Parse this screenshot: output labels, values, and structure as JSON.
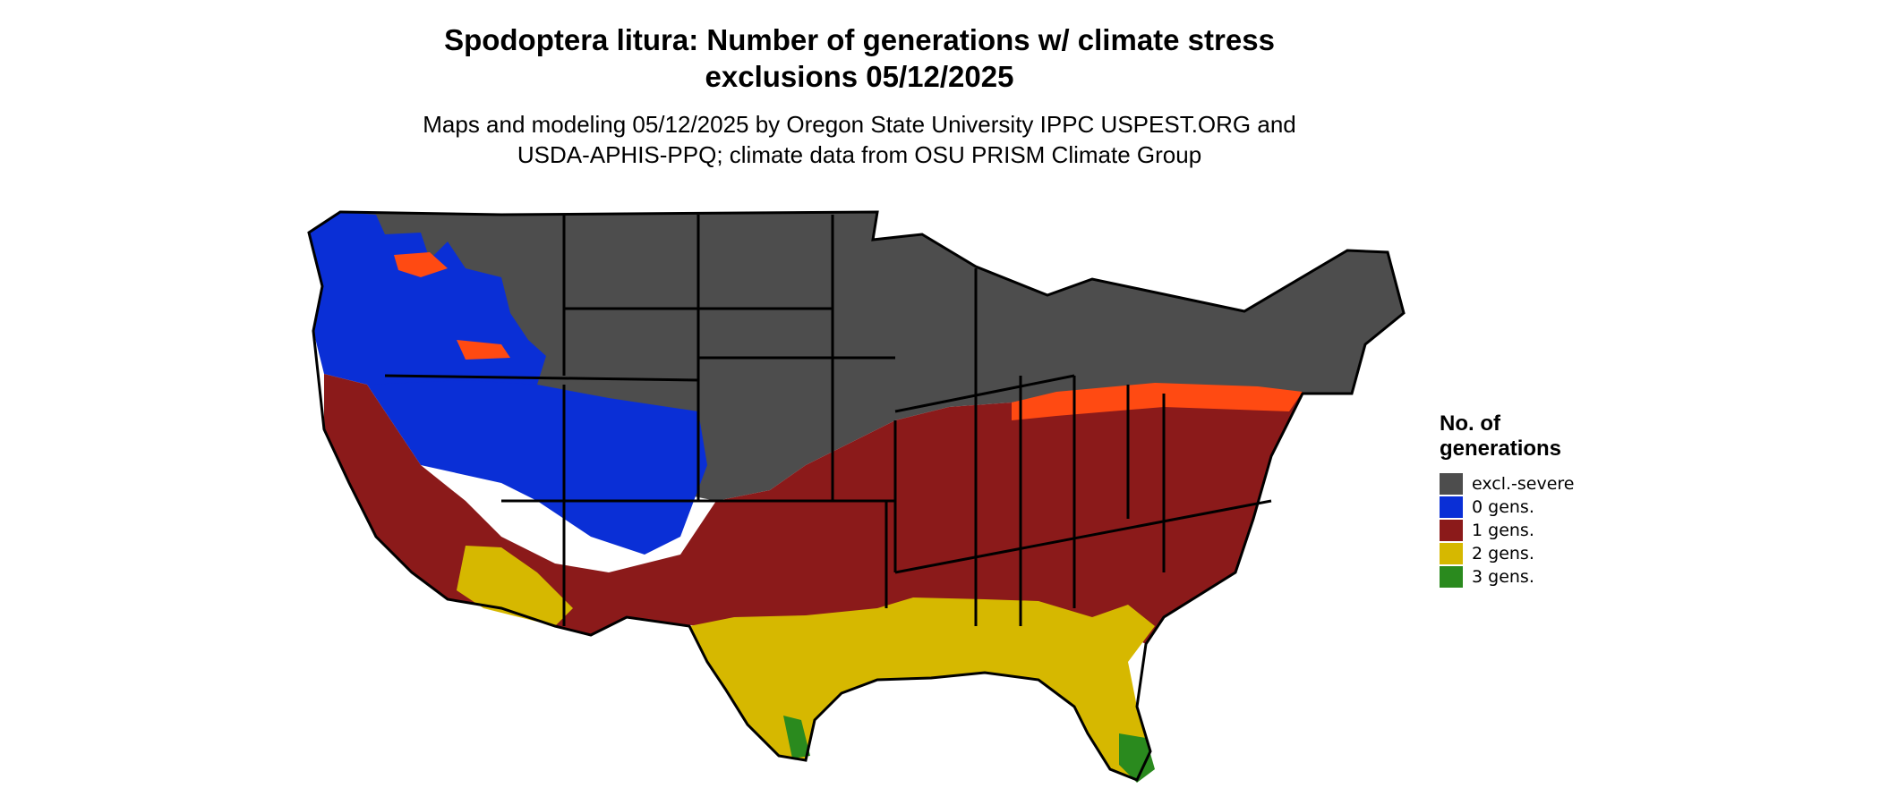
{
  "title_line1": "Spodoptera litura: Number of generations w/ climate stress",
  "title_line2": "exclusions 05/12/2025",
  "subtitle_line1": "Maps and modeling 05/12/2025 by Oregon State University IPPC USPEST.ORG and",
  "subtitle_line2": "USDA-APHIS-PPQ; climate data from OSU PRISM Climate Group",
  "legend": {
    "title_line1": "No. of",
    "title_line2": "generations",
    "items": [
      {
        "label": "excl.-severe",
        "color": "#4d4d4d"
      },
      {
        "label": "0 gens.",
        "color": "#0a2fd6"
      },
      {
        "label": "1 gens.",
        "color": "#8b1a1a"
      },
      {
        "label": "2 gens.",
        "color": "#d6b800"
      },
      {
        "label": "3 gens.",
        "color": "#2a8a1e"
      }
    ]
  },
  "map_colors": {
    "excl": "#4d4d4d",
    "zero": "#0a2fd6",
    "one": "#8b1a1a",
    "one_light": "#ff4a12",
    "two": "#d6b800",
    "three": "#2a8a1e",
    "border": "#000000"
  }
}
